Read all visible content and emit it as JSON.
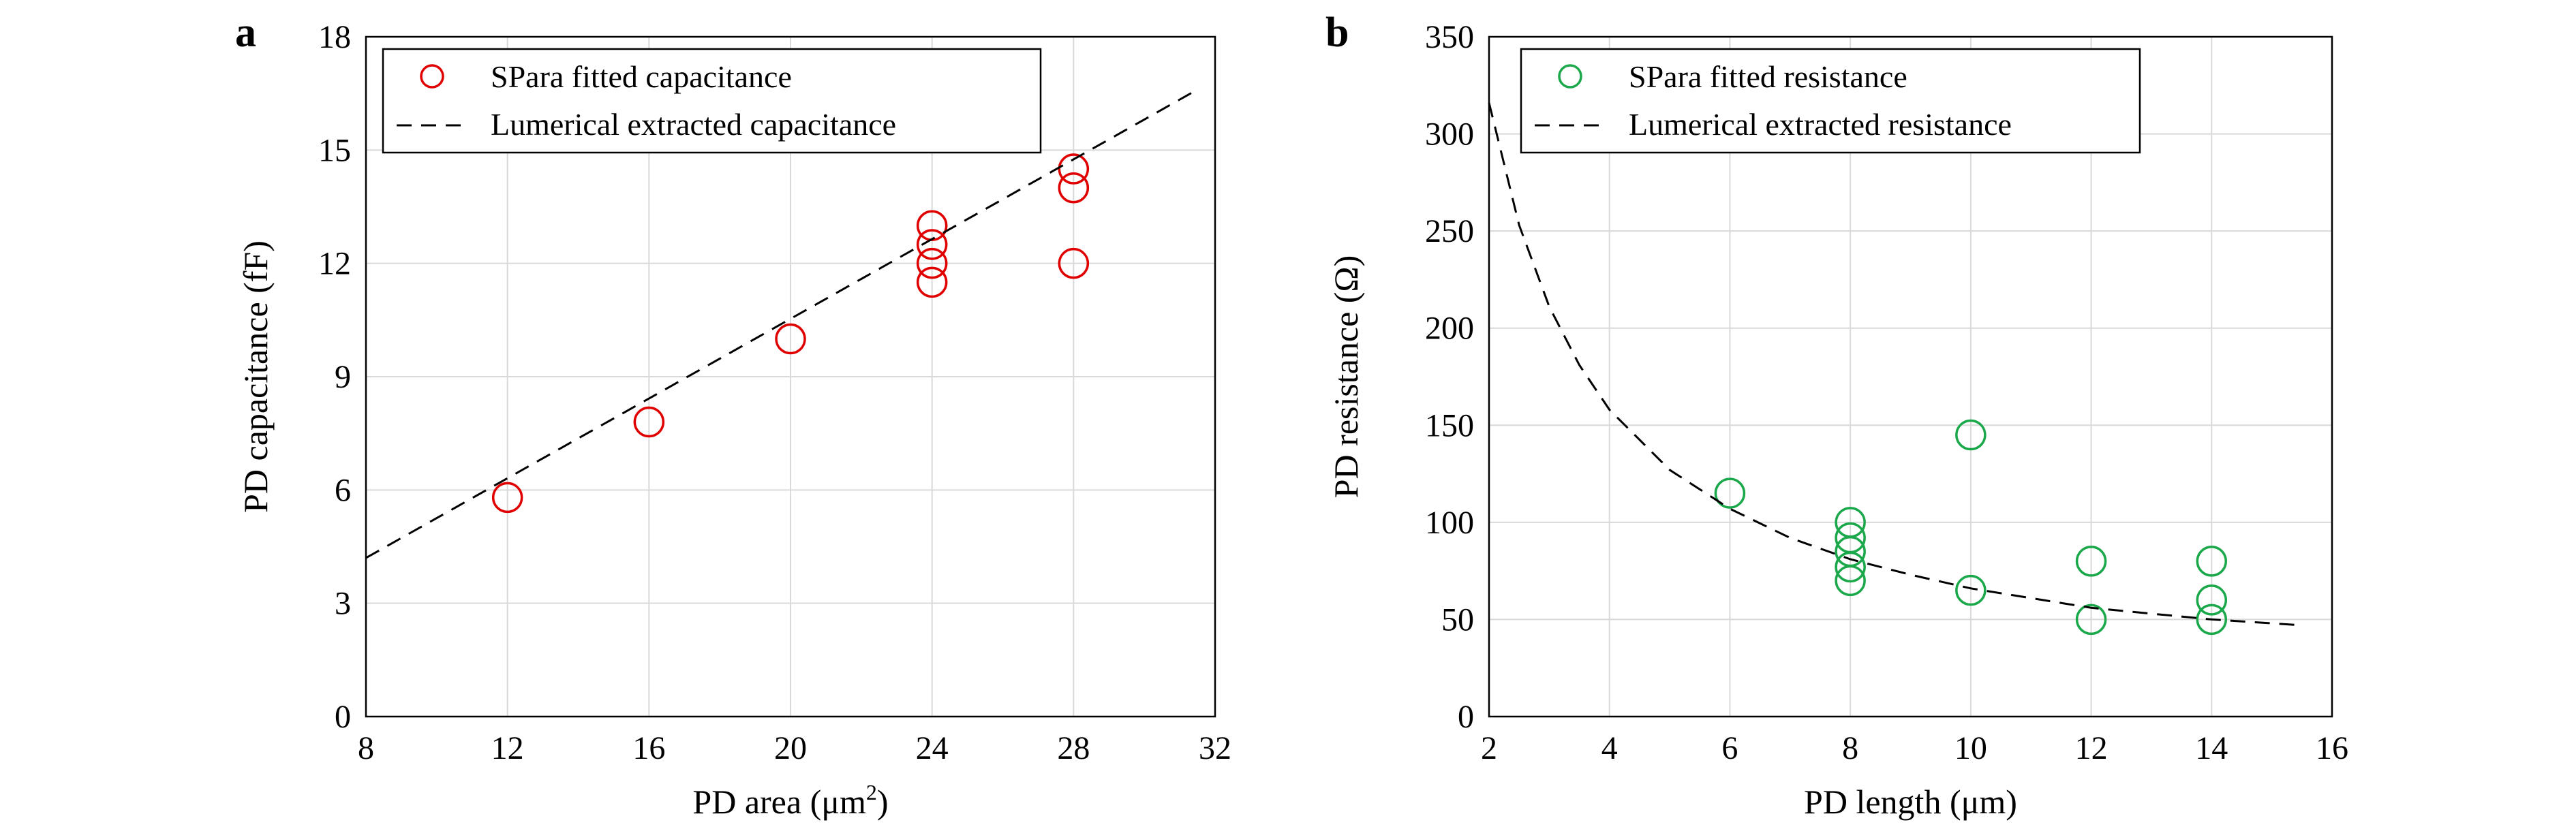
{
  "chart_data": [
    {
      "panel_label": "a",
      "type": "scatter",
      "xlabel": "PD area (μm",
      "xlabel_sup": "2",
      "xlabel_end": ")",
      "ylabel": "PD capacitance (fF)",
      "xlim": [
        8,
        32
      ],
      "ylim": [
        0,
        18
      ],
      "xticks": [
        8,
        12,
        16,
        20,
        24,
        28,
        32
      ],
      "yticks": [
        0,
        3,
        6,
        9,
        12,
        15,
        18
      ],
      "grid": true,
      "legend_position": "top-left",
      "series": [
        {
          "name": "SPara fitted capacitance",
          "kind": "markers",
          "marker": "open-circle",
          "color": "#e00000",
          "points": [
            [
              12,
              5.8
            ],
            [
              16,
              7.8
            ],
            [
              20,
              10.0
            ],
            [
              24,
              11.5
            ],
            [
              24,
              12.0
            ],
            [
              24,
              12.5
            ],
            [
              24,
              13.0
            ],
            [
              28,
              12.0
            ],
            [
              28,
              14.0
            ],
            [
              28,
              14.5
            ]
          ]
        },
        {
          "name": "Lumerical extracted capacitance",
          "kind": "dashed-line",
          "color": "#000000",
          "points": [
            [
              8,
              4.2
            ],
            [
              31.5,
              16.6
            ]
          ]
        }
      ]
    },
    {
      "panel_label": "b",
      "type": "scatter",
      "xlabel": "PD length (μm)",
      "ylabel": "PD resistance (Ω)",
      "xlim": [
        2,
        16
      ],
      "ylim": [
        0,
        350
      ],
      "xticks": [
        2,
        4,
        6,
        8,
        10,
        12,
        14,
        16
      ],
      "yticks": [
        0,
        50,
        100,
        150,
        200,
        250,
        300,
        350
      ],
      "grid": true,
      "legend_position": "top-right",
      "series": [
        {
          "name": "SPara fitted resistance",
          "kind": "markers",
          "marker": "open-circle",
          "color": "#1aa84a",
          "points": [
            [
              6,
              115
            ],
            [
              8,
              70
            ],
            [
              8,
              77
            ],
            [
              8,
              85
            ],
            [
              8,
              92
            ],
            [
              8,
              100
            ],
            [
              10,
              65
            ],
            [
              10,
              145
            ],
            [
              12,
              50
            ],
            [
              12,
              80
            ],
            [
              14,
              50
            ],
            [
              14,
              60
            ],
            [
              14,
              80
            ]
          ]
        },
        {
          "name": "Lumerical extracted resistance",
          "kind": "dashed-line",
          "color": "#000000",
          "points": [
            [
              2.0,
              316
            ],
            [
              2.5,
              253
            ],
            [
              3,
              211
            ],
            [
              3.5,
              181
            ],
            [
              4,
              158
            ],
            [
              5,
              127
            ],
            [
              6,
              107
            ],
            [
              7,
              92
            ],
            [
              8,
              81
            ],
            [
              9,
              73
            ],
            [
              10,
              66
            ],
            [
              11,
              61
            ],
            [
              12,
              56
            ],
            [
              13,
              53
            ],
            [
              14,
              50
            ],
            [
              15,
              48
            ],
            [
              15.5,
              47
            ]
          ]
        }
      ]
    }
  ]
}
